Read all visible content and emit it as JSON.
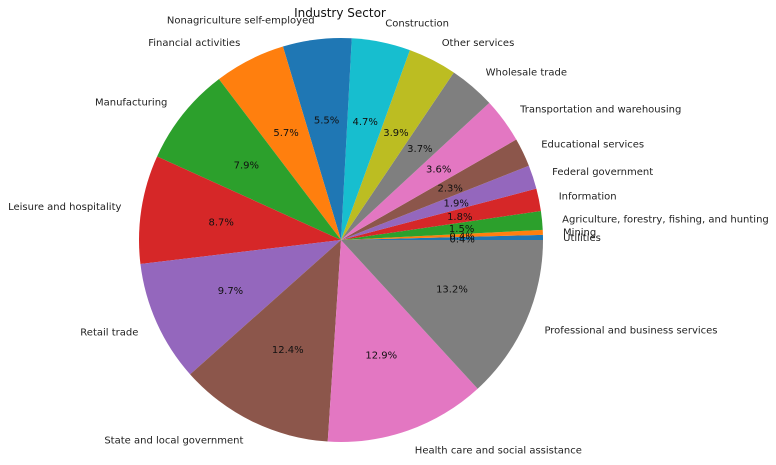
{
  "chart_data": {
    "type": "pie",
    "title": "Industry Sector",
    "start_angle_deg": 0,
    "direction": "counterclockwise",
    "slices": [
      {
        "label": "Utilities",
        "value": 0.4,
        "pct_label": "0.4%",
        "color": "#1f77b4"
      },
      {
        "label": "Mining",
        "value": 0.4,
        "pct_label": "0.4%",
        "color": "#ff7f0e"
      },
      {
        "label": "Agriculture, forestry, fishing, and hunting",
        "value": 1.5,
        "pct_label": "1.5%",
        "color": "#2ca02c"
      },
      {
        "label": "Information",
        "value": 1.8,
        "pct_label": "1.8%",
        "color": "#d62728"
      },
      {
        "label": "Federal government",
        "value": 1.9,
        "pct_label": "1.9%",
        "color": "#9467bd"
      },
      {
        "label": "Educational services",
        "value": 2.3,
        "pct_label": "2.3%",
        "color": "#8c564b"
      },
      {
        "label": "Transportation and warehousing",
        "value": 3.6,
        "pct_label": "3.6%",
        "color": "#e377c2"
      },
      {
        "label": "Wholesale trade",
        "value": 3.7,
        "pct_label": "3.7%",
        "color": "#7f7f7f"
      },
      {
        "label": "Other services",
        "value": 3.9,
        "pct_label": "3.9%",
        "color": "#bcbd22"
      },
      {
        "label": "Construction",
        "value": 4.7,
        "pct_label": "4.7%",
        "color": "#17becf"
      },
      {
        "label": "Nonagriculture self-employed",
        "value": 5.5,
        "pct_label": "5.5%",
        "color": "#1f77b4"
      },
      {
        "label": "Financial activities",
        "value": 5.7,
        "pct_label": "5.7%",
        "color": "#ff7f0e"
      },
      {
        "label": "Manufacturing",
        "value": 7.9,
        "pct_label": "7.9%",
        "color": "#2ca02c"
      },
      {
        "label": "Leisure and hospitality",
        "value": 8.7,
        "pct_label": "8.7%",
        "color": "#d62728"
      },
      {
        "label": "Retail trade",
        "value": 9.7,
        "pct_label": "9.7%",
        "color": "#9467bd"
      },
      {
        "label": "State and local government",
        "value": 12.4,
        "pct_label": "12.4%",
        "color": "#8c564b"
      },
      {
        "label": "Health care and social assistance",
        "value": 12.9,
        "pct_label": "12.9%",
        "color": "#e377c2"
      },
      {
        "label": "Professional and business services",
        "value": 13.2,
        "pct_label": "13.2%",
        "color": "#7f7f7f"
      }
    ]
  }
}
